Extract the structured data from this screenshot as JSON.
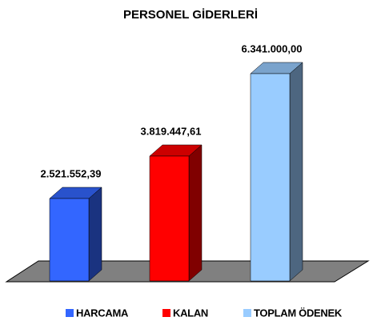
{
  "chart_data": {
    "type": "bar3d",
    "title": "PERSONEL GİDERLERİ",
    "categories": [
      "HARCAMA",
      "KALAN",
      "TOPLAM ÖDENEK"
    ],
    "values": [
      2521552.39,
      3819447.61,
      6341000.0
    ],
    "value_labels": [
      "2.521.552,39",
      "3.819.447,61",
      "6.341.000,00"
    ],
    "colors": [
      "#3366ff",
      "#ff0000",
      "#99ccff"
    ],
    "legend": "bottom"
  }
}
